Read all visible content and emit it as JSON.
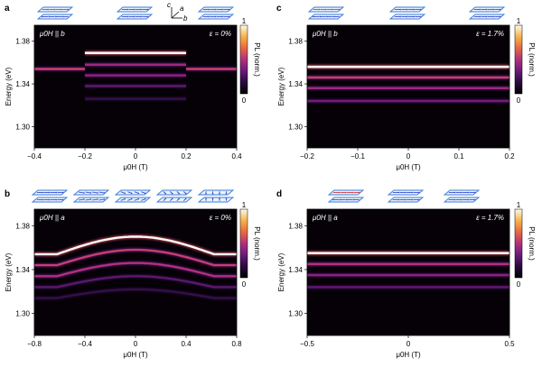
{
  "figure": {
    "colormap_stops": [
      "#000000",
      "#2a0a3e",
      "#6b1a7a",
      "#b0307e",
      "#e8683e",
      "#f7b24a",
      "#fdfbe8"
    ],
    "colorbar": {
      "label": "PL (norm.)",
      "ticks": [
        "1",
        "0"
      ]
    },
    "state_icons": {
      "layer_color": "#3a7bd5",
      "spin_up_color": "#3b4fd0",
      "spin_down_color": "#d83a3a"
    },
    "axes_icon": {
      "c": "c",
      "a": "a",
      "b": "b"
    }
  },
  "chart_data": [
    {
      "panel": "a",
      "type": "heatmap",
      "field_label": "μ0H || b",
      "strain_label": "ε = 0%",
      "xlabel": "μ0H (T)",
      "ylabel": "Energy (eV)",
      "xlim": [
        -0.4,
        0.4
      ],
      "ylim": [
        1.28,
        1.395
      ],
      "xticks": [
        "-0.4",
        "-0.2",
        "0",
        "0.2",
        "0.4"
      ],
      "yticks": [
        "1.38",
        "1.34",
        "1.30"
      ],
      "state_icon_count": 3,
      "lines": [
        {
          "x_range": [
            -0.4,
            -0.2
          ],
          "energy": 1.354,
          "intensity": 0.55
        },
        {
          "x_range": [
            0.2,
            0.4
          ],
          "energy": 1.354,
          "intensity": 0.55
        },
        {
          "x_range": [
            -0.2,
            0.2
          ],
          "energy": 1.369,
          "intensity": 1.0
        },
        {
          "x_range": [
            -0.2,
            0.2
          ],
          "energy": 1.358,
          "intensity": 0.45
        },
        {
          "x_range": [
            -0.2,
            0.2
          ],
          "energy": 1.348,
          "intensity": 0.4
        },
        {
          "x_range": [
            -0.2,
            0.2
          ],
          "energy": 1.338,
          "intensity": 0.3
        },
        {
          "x_range": [
            -0.2,
            0.2
          ],
          "energy": 1.326,
          "intensity": 0.2
        }
      ]
    },
    {
      "panel": "c",
      "type": "heatmap",
      "field_label": "μ0H || b",
      "strain_label": "ε = 1.7%",
      "xlabel": "μ0H (T)",
      "ylabel": "Energy (eV)",
      "xlim": [
        -0.2,
        0.2
      ],
      "ylim": [
        1.28,
        1.395
      ],
      "xticks": [
        "-0.2",
        "-0.1",
        "0",
        "0.1",
        "0.2"
      ],
      "yticks": [
        "1.38",
        "1.34",
        "1.30"
      ],
      "state_icon_count": 3,
      "lines": [
        {
          "x_range": [
            -0.2,
            0.2
          ],
          "energy": 1.356,
          "intensity": 1.0
        },
        {
          "x_range": [
            -0.2,
            0.2
          ],
          "energy": 1.346,
          "intensity": 0.55
        },
        {
          "x_range": [
            -0.2,
            0.2
          ],
          "energy": 1.336,
          "intensity": 0.45
        },
        {
          "x_range": [
            -0.2,
            0.2
          ],
          "energy": 1.324,
          "intensity": 0.35
        }
      ]
    },
    {
      "panel": "b",
      "type": "heatmap",
      "field_label": "μ0H || a",
      "strain_label": "ε = 0%",
      "xlabel": "μ0H (T)",
      "ylabel": "Energy (eV)",
      "xlim": [
        -0.8,
        0.8
      ],
      "ylim": [
        1.28,
        1.395
      ],
      "xticks": [
        "-0.8",
        "-0.4",
        "0",
        "0.4",
        "0.8"
      ],
      "yticks": [
        "1.38",
        "1.34",
        "1.30"
      ],
      "state_icon_count": 5,
      "curves": [
        {
          "energy_edge": 1.354,
          "energy_center": 1.37,
          "intensity": 1.0
        },
        {
          "energy_edge": 1.344,
          "energy_center": 1.358,
          "intensity": 0.55
        },
        {
          "energy_edge": 1.334,
          "energy_center": 1.346,
          "intensity": 0.5
        },
        {
          "energy_edge": 1.324,
          "energy_center": 1.334,
          "intensity": 0.3
        },
        {
          "energy_edge": 1.314,
          "energy_center": 1.322,
          "intensity": 0.2
        }
      ]
    },
    {
      "panel": "d",
      "type": "heatmap",
      "field_label": "μ0H || a",
      "strain_label": "ε = 1.7%",
      "xlabel": "μ0H (T)",
      "ylabel": "Energy (eV)",
      "xlim": [
        -0.5,
        0.5
      ],
      "ylim": [
        1.28,
        1.395
      ],
      "xticks": [
        "-0.5",
        "0",
        "0.5"
      ],
      "yticks": [
        "1.38",
        "1.34",
        "1.30"
      ],
      "state_icon_count": 3,
      "lines": [
        {
          "x_range": [
            -0.5,
            0.5
          ],
          "energy": 1.355,
          "intensity": 1.0
        },
        {
          "x_range": [
            -0.5,
            0.5
          ],
          "energy": 1.345,
          "intensity": 0.5
        },
        {
          "x_range": [
            -0.5,
            0.5
          ],
          "energy": 1.335,
          "intensity": 0.4
        },
        {
          "x_range": [
            -0.5,
            0.5
          ],
          "energy": 1.324,
          "intensity": 0.3
        }
      ]
    }
  ]
}
